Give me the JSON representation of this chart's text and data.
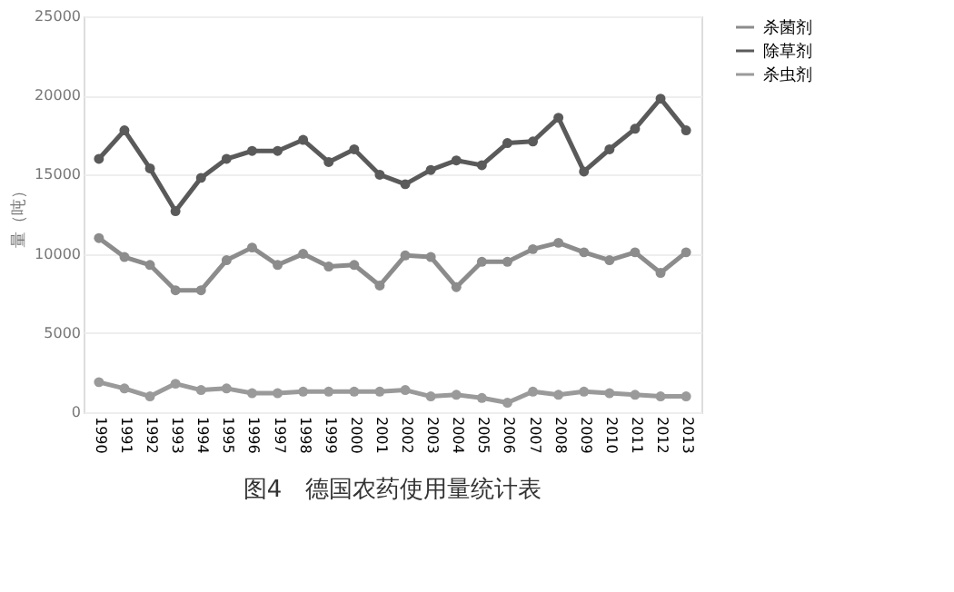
{
  "chart_data": {
    "type": "line",
    "title": "图4　德国农药使用量统计表",
    "ylabel": "量（吨）",
    "categories": [
      "1990",
      "1991",
      "1992",
      "1993",
      "1994",
      "1995",
      "1996",
      "1997",
      "1998",
      "1999",
      "2000",
      "2001",
      "2002",
      "2003",
      "2004",
      "2005",
      "2006",
      "2007",
      "2008",
      "2009",
      "2010",
      "2011",
      "2012",
      "2013"
    ],
    "series": [
      {
        "name": "杀菌剂",
        "color": "#8c8c8c",
        "values": [
          11000,
          9800,
          9300,
          7700,
          7700,
          9600,
          10400,
          9300,
          10000,
          9200,
          9300,
          8000,
          9900,
          9800,
          7900,
          9500,
          9500,
          10300,
          10700,
          10100,
          9600,
          10100,
          8800,
          10100
        ]
      },
      {
        "name": "除草剂",
        "color": "#5a5a5a",
        "values": [
          16000,
          17800,
          15400,
          12700,
          14800,
          16000,
          16500,
          16500,
          17200,
          15800,
          16600,
          15000,
          14400,
          15300,
          15900,
          15600,
          17000,
          17100,
          18600,
          15200,
          16600,
          17900,
          19800,
          17800
        ]
      },
      {
        "name": "杀虫剂",
        "color": "#9a9a9a",
        "values": [
          1900,
          1500,
          1000,
          1800,
          1400,
          1500,
          1200,
          1200,
          1300,
          1300,
          1300,
          1300,
          1400,
          1000,
          1100,
          900,
          600,
          1300,
          1100,
          1300,
          1200,
          1100,
          1000,
          1000
        ]
      }
    ],
    "ylim": [
      0,
      25000
    ],
    "yticks": [
      0,
      5000,
      10000,
      15000,
      20000,
      25000
    ],
    "grid": "y",
    "legend": "right",
    "marker": "circle",
    "line_style": "solid"
  }
}
